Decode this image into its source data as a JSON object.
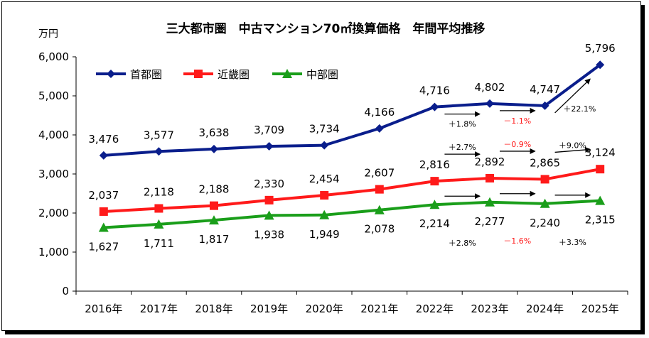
{
  "chart_data": {
    "type": "line",
    "title": "三大都市圏　中古マンション70㎡換算価格　年間平均推移",
    "ylabel": "万円",
    "xlabel": "",
    "ylim": [
      0,
      6000
    ],
    "yticks": [
      "0",
      "1,000",
      "2,000",
      "3,000",
      "4,000",
      "5,000",
      "6,000"
    ],
    "categories": [
      "2016年",
      "2017年",
      "2018年",
      "2019年",
      "2020年",
      "2021年",
      "2022年",
      "2023年",
      "2024年",
      "2025年"
    ],
    "legend_position": "top-left",
    "series": [
      {
        "name": "首都圏",
        "color": "#0a1e8c",
        "marker": "diamond",
        "values": [
          3476,
          3577,
          3638,
          3709,
          3734,
          4166,
          4716,
          4802,
          4747,
          5796
        ],
        "labels": [
          "3,476",
          "3,577",
          "3,638",
          "3,709",
          "3,734",
          "4,166",
          "4,716",
          "4,802",
          "4,747",
          "5,796"
        ]
      },
      {
        "name": "近畿圏",
        "color": "#ff1a1a",
        "marker": "square",
        "values": [
          2037,
          2118,
          2188,
          2330,
          2454,
          2607,
          2816,
          2892,
          2865,
          3124
        ],
        "labels": [
          "2,037",
          "2,118",
          "2,188",
          "2,330",
          "2,454",
          "2,607",
          "2,816",
          "2,892",
          "2,865",
          "3,124"
        ]
      },
      {
        "name": "中部圏",
        "color": "#1a9e1a",
        "marker": "triangle",
        "values": [
          1627,
          1711,
          1817,
          1938,
          1949,
          2078,
          2214,
          2277,
          2240,
          2315
        ],
        "labels": [
          "1,627",
          "1,711",
          "1,817",
          "1,938",
          "1,949",
          "2,078",
          "2,214",
          "2,277",
          "2,240",
          "2,315"
        ]
      }
    ],
    "annotations": [
      {
        "series": "首都圏",
        "from": "2022年",
        "to": "2023年",
        "text": "＋1.8%",
        "color": "#000000"
      },
      {
        "series": "首都圏",
        "from": "2023年",
        "to": "2024年",
        "text": "－1.1%",
        "color": "#ff1a1a"
      },
      {
        "series": "首都圏",
        "from": "2024年",
        "to": "2025年",
        "text": "＋22.1%",
        "color": "#000000"
      },
      {
        "series": "近畿圏",
        "from": "2022年",
        "to": "2023年",
        "text": "＋2.7%",
        "color": "#000000"
      },
      {
        "series": "近畿圏",
        "from": "2023年",
        "to": "2024年",
        "text": "－0.9%",
        "color": "#ff1a1a"
      },
      {
        "series": "近畿圏",
        "from": "2024年",
        "to": "2025年",
        "text": "＋9.0%",
        "color": "#000000"
      },
      {
        "series": "中部圏",
        "from": "2022年",
        "to": "2023年",
        "text": "＋2.8%",
        "color": "#000000"
      },
      {
        "series": "中部圏",
        "from": "2023年",
        "to": "2024年",
        "text": "－1.6%",
        "color": "#ff1a1a"
      },
      {
        "series": "中部圏",
        "from": "2024年",
        "to": "2025年",
        "text": "＋3.3%",
        "color": "#000000"
      }
    ]
  }
}
